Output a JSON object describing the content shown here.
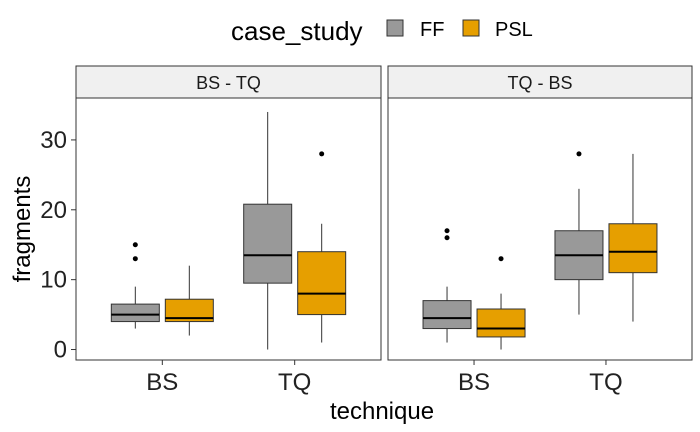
{
  "chart_data": {
    "type": "boxplot",
    "xlabel": "technique",
    "ylabel": "fragments",
    "ylim": [
      -1.5,
      36
    ],
    "yticks": [
      0,
      10,
      20,
      30
    ],
    "categories": [
      "BS",
      "TQ"
    ],
    "legend": {
      "title": "case_study",
      "position": "top",
      "entries": [
        {
          "name": "FF",
          "color": "#999999"
        },
        {
          "name": "PSL",
          "color": "#E69F00"
        }
      ]
    },
    "facets": [
      {
        "label": "BS - TQ",
        "boxes": [
          {
            "category": "BS",
            "group": "FF",
            "min": 3,
            "q1": 4,
            "median": 5,
            "q3": 6.5,
            "max": 9,
            "outliers": [
              13,
              15
            ]
          },
          {
            "category": "BS",
            "group": "PSL",
            "min": 2,
            "q1": 4,
            "median": 4.5,
            "q3": 7.2,
            "max": 12,
            "outliers": []
          },
          {
            "category": "TQ",
            "group": "FF",
            "min": 0,
            "q1": 9.5,
            "median": 13.5,
            "q3": 20.8,
            "max": 34,
            "outliers": []
          },
          {
            "category": "TQ",
            "group": "PSL",
            "min": 1,
            "q1": 5,
            "median": 8,
            "q3": 14,
            "max": 18,
            "outliers": [
              28
            ]
          }
        ]
      },
      {
        "label": "TQ - BS",
        "boxes": [
          {
            "category": "BS",
            "group": "FF",
            "min": 1,
            "q1": 3,
            "median": 4.5,
            "q3": 7,
            "max": 9,
            "outliers": [
              16,
              17
            ]
          },
          {
            "category": "BS",
            "group": "PSL",
            "min": 0,
            "q1": 1.8,
            "median": 3,
            "q3": 5.8,
            "max": 8,
            "outliers": [
              13
            ]
          },
          {
            "category": "TQ",
            "group": "FF",
            "min": 5,
            "q1": 10,
            "median": 13.5,
            "q3": 17,
            "max": 23,
            "outliers": [
              28
            ]
          },
          {
            "category": "TQ",
            "group": "PSL",
            "min": 4,
            "q1": 11,
            "median": 14,
            "q3": 18,
            "max": 28,
            "outliers": []
          }
        ]
      }
    ]
  }
}
